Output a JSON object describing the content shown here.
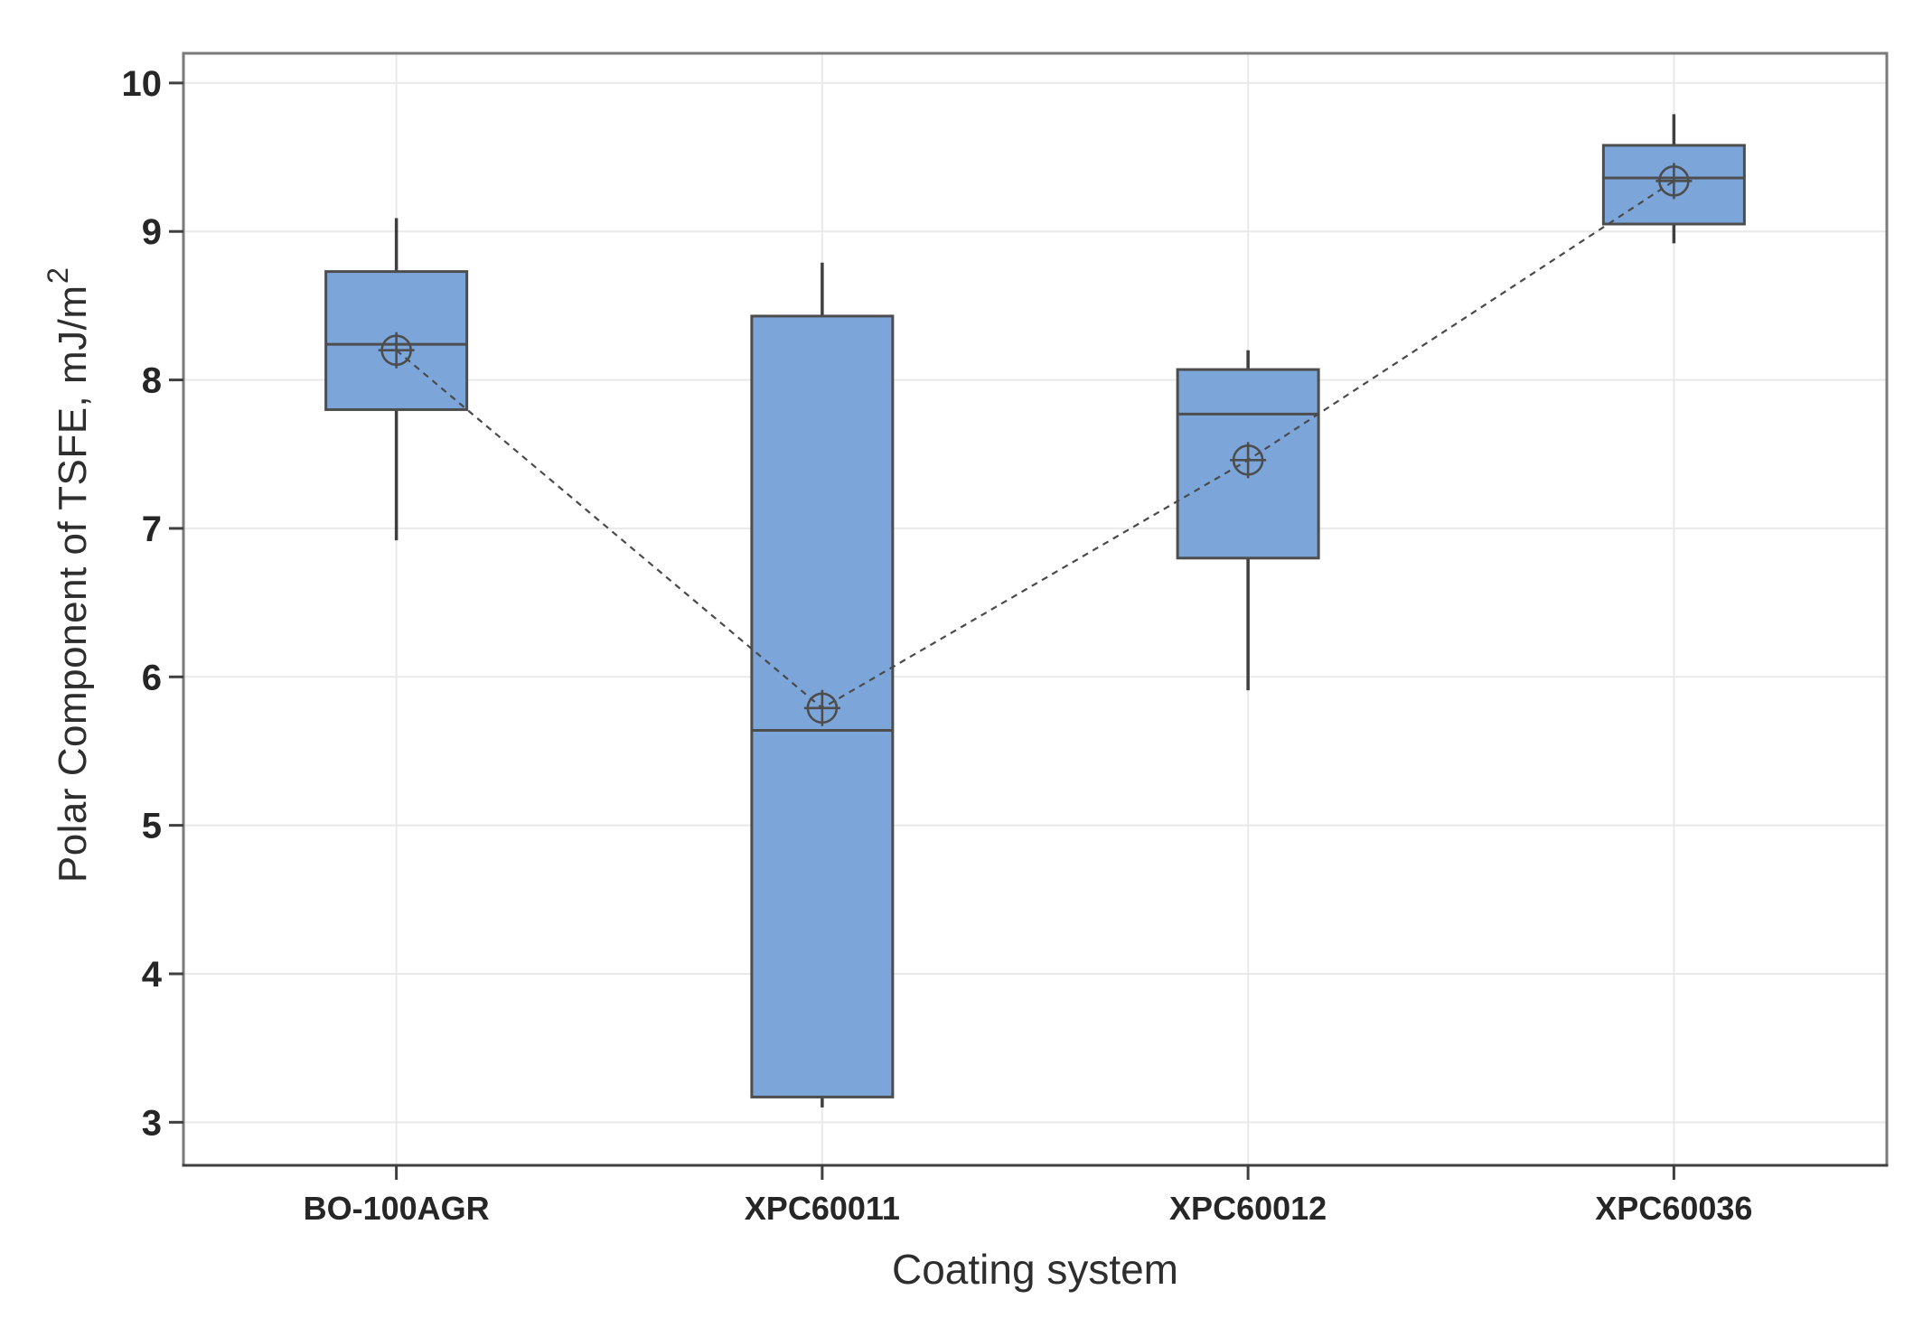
{
  "figure": {
    "kind": "box-plot-figure",
    "background": "#ffffff"
  },
  "chart_data": {
    "type": "boxplot",
    "title": "",
    "xlabel": "Coating system",
    "ylabel_main": "Polar Component of TSFE, mJ/m",
    "ylabel_sup": "2",
    "ylabel_full": "Polar Component of TSFE, mJ/m²",
    "categories": [
      "BO-100AGR",
      "XPC60011",
      "XPC60012",
      "XPC60036"
    ],
    "series": [
      {
        "name": "BO-100AGR",
        "whisker_low": 6.92,
        "q1": 7.8,
        "median": 8.24,
        "q3": 8.73,
        "whisker_high": 9.09,
        "mean": 8.2
      },
      {
        "name": "XPC60011",
        "whisker_low": 3.1,
        "q1": 3.17,
        "median": 5.64,
        "q3": 8.43,
        "whisker_high": 8.79,
        "mean": 5.79
      },
      {
        "name": "XPC60012",
        "whisker_low": 5.91,
        "q1": 6.8,
        "median": 7.77,
        "q3": 8.07,
        "whisker_high": 8.2,
        "mean": 7.46
      },
      {
        "name": "XPC60036",
        "whisker_low": 8.92,
        "q1": 9.05,
        "median": 9.36,
        "q3": 9.58,
        "whisker_high": 9.79,
        "mean": 9.34
      }
    ],
    "mean_connect": true,
    "yticks": [
      3,
      4,
      5,
      6,
      7,
      8,
      9,
      10
    ],
    "ylim": [
      2.71,
      10.2
    ],
    "grid": {
      "horizontal": true,
      "vertical_at_categories": true
    },
    "legend": "none",
    "colors": {
      "box_fill": "#7CA6DA",
      "box_stroke": "#4D4D4D",
      "whisker": "#3F3F3F",
      "median": "#4D4D4D",
      "mean_line": "#4A4A4A",
      "mean_marker": "#4D4D4D",
      "grid": "#E9E9E9",
      "frame": "#7A7A7A",
      "axis": "#3F3F3F",
      "text": "#262626"
    }
  }
}
